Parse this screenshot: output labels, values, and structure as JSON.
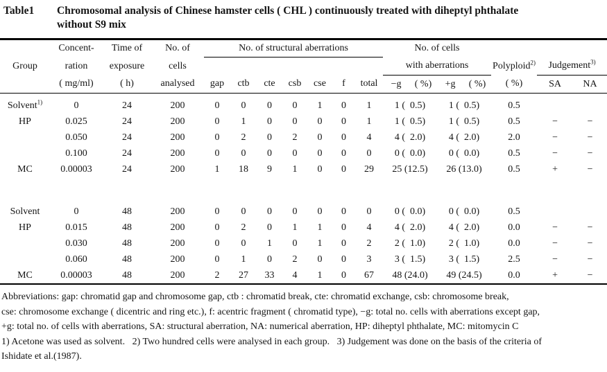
{
  "title": {
    "label": "Table1",
    "line1": "Chromosomal analysis of Chinese hamster cells ( CHL ) continuously treated with diheptyl phthalate",
    "line2": "without S9 mix"
  },
  "table": {
    "header": {
      "group": "Group",
      "conc": [
        "Concent-",
        "ration",
        "( mg/ml)"
      ],
      "time": [
        "Time of",
        "exposure",
        "( h)"
      ],
      "cells": [
        "No. of",
        "cells",
        "analysed"
      ],
      "structural_group": "No. of structural aberrations",
      "structural_cols": [
        "gap",
        "ctb",
        "cte",
        "csb",
        "cse",
        "f",
        "total"
      ],
      "with_cells_l1": "No. of cells",
      "with_cells_l2": "with aberrations",
      "with_cols": [
        "−g",
        "( %)",
        "+g",
        "( %)"
      ],
      "polyploid": "Polyploid",
      "polyploid_sup": "2)",
      "polyploid_unit": "( %)",
      "judgement": "Judgement",
      "judgement_sup": "3)",
      "judgement_cols": [
        "SA",
        "NA"
      ]
    },
    "column_names": [
      "group",
      "concentration",
      "time-of-exposure",
      "cells-analysed",
      "gap",
      "ctb",
      "cte",
      "csb",
      "cse",
      "f",
      "total",
      "minus-g-percent",
      "plus-g-percent",
      "polyploid-percent",
      "judgement-sa",
      "judgement-na"
    ],
    "row_groups": [
      [
        [
          "Solvent^1)",
          "0",
          "24",
          "200",
          "0",
          "0",
          "0",
          "0",
          "1",
          "0",
          "1",
          "1 (  0.5)",
          "1 (  0.5)",
          "0.5",
          "",
          ""
        ],
        [
          "HP",
          "0.025",
          "24",
          "200",
          "0",
          "1",
          "0",
          "0",
          "0",
          "0",
          "1",
          "1 (  0.5)",
          "1 (  0.5)",
          "0.5",
          "−",
          "−"
        ],
        [
          "",
          "0.050",
          "24",
          "200",
          "0",
          "2",
          "0",
          "2",
          "0",
          "0",
          "4",
          "4 (  2.0)",
          "4 (  2.0)",
          "2.0",
          "−",
          "−"
        ],
        [
          "",
          "0.100",
          "24",
          "200",
          "0",
          "0",
          "0",
          "0",
          "0",
          "0",
          "0",
          "0 (  0.0)",
          "0 (  0.0)",
          "0.5",
          "−",
          "−"
        ],
        [
          "MC",
          "0.00003",
          "24",
          "200",
          "1",
          "18",
          "9",
          "1",
          "0",
          "0",
          "29",
          "25 (12.5)",
          "26 (13.0)",
          "0.5",
          "+",
          "−"
        ]
      ],
      [
        [
          "Solvent",
          "0",
          "48",
          "200",
          "0",
          "0",
          "0",
          "0",
          "0",
          "0",
          "0",
          "0 (  0.0)",
          "0 (  0.0)",
          "0.5",
          "",
          ""
        ],
        [
          "HP",
          "0.015",
          "48",
          "200",
          "0",
          "2",
          "0",
          "1",
          "1",
          "0",
          "4",
          "4 (  2.0)",
          "4 (  2.0)",
          "0.0",
          "−",
          "−"
        ],
        [
          "",
          "0.030",
          "48",
          "200",
          "0",
          "0",
          "1",
          "0",
          "1",
          "0",
          "2",
          "2 (  1.0)",
          "2 (  1.0)",
          "0.0",
          "−",
          "−"
        ],
        [
          "",
          "0.060",
          "48",
          "200",
          "0",
          "1",
          "0",
          "2",
          "0",
          "0",
          "3",
          "3 (  1.5)",
          "3 (  1.5)",
          "2.5",
          "−",
          "−"
        ],
        [
          "MC",
          "0.00003",
          "48",
          "200",
          "2",
          "27",
          "33",
          "4",
          "1",
          "0",
          "67",
          "48 (24.0)",
          "49 (24.5)",
          "0.0",
          "+",
          "−"
        ]
      ]
    ]
  },
  "footnotes": [
    "Abbreviations: gap: chromatid gap and chromosome gap, ctb : chromatid break, cte: chromatid exchange, csb: chromosome break,",
    "cse: chromosome exchange ( dicentric and ring etc.), f: acentric fragment ( chromatid type), −g: total no. cells with aberrations except gap,",
    "+g: total no. of cells with aberrations, SA: structural aberration, NA: numerical aberration, HP: diheptyl phthalate, MC: mitomycin C",
    "1) Acetone was used as solvent.   2) Two hundred cells were analysed in each group.   3) Judgement was done on the basis of the criteria of",
    "Ishidate et al.(1987)."
  ]
}
